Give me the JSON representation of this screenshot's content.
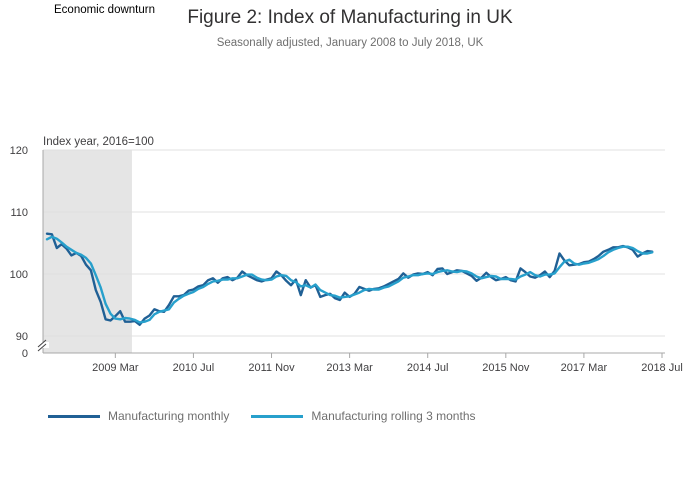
{
  "header": {
    "title": "Figure 2: Index of Manufacturing in UK",
    "subtitle": "Seasonally adjusted, January 2008 to July 2018, UK"
  },
  "annotation": {
    "downturn_label": "Economic downturn"
  },
  "colors": {
    "monthly": "#206095",
    "rolling": "#27A0CC",
    "downturn_shade": "#E5E5E5",
    "grid": "#E0E0E0",
    "axis": "#A8A8A8",
    "tick_text": "#414042"
  },
  "chart_data": {
    "type": "line",
    "ylabel": "Index year, 2016=100",
    "ylim": [
      0,
      120
    ],
    "y_ticks": [
      0,
      90,
      100,
      110,
      120
    ],
    "y_axis_broken": true,
    "grid": true,
    "legend_position": "bottom-left",
    "x_tick_labels": [
      {
        "label": "2009 Mar",
        "month_index": 14
      },
      {
        "label": "2010 Jul",
        "month_index": 30
      },
      {
        "label": "2011 Nov",
        "month_index": 46
      },
      {
        "label": "2013 Mar",
        "month_index": 62
      },
      {
        "label": "2014 Jul",
        "month_index": 78
      },
      {
        "label": "2015 Nov",
        "month_index": 94
      },
      {
        "label": "2017 Mar",
        "month_index": 110
      },
      {
        "label": "2018 Jul",
        "month_index": 126
      }
    ],
    "x_start": "2008 Jan",
    "x_end": "2018 Jul",
    "shaded_period": {
      "label": "Economic downturn",
      "start": "2008 Jan",
      "end": "2009 Jun"
    },
    "series": [
      {
        "name": "Manufacturing monthly",
        "values": [
          106.5,
          106.4,
          104.2,
          104.8,
          104.1,
          103.0,
          103.4,
          102.9,
          101.5,
          100.6,
          97.4,
          95.5,
          92.7,
          92.5,
          93.2,
          94.0,
          92.3,
          92.3,
          92.4,
          91.8,
          92.8,
          93.3,
          94.3,
          94.0,
          93.9,
          95.0,
          96.4,
          96.4,
          96.6,
          97.3,
          97.5,
          98.0,
          98.2,
          99.0,
          99.3,
          98.6,
          99.3,
          99.5,
          99.0,
          99.4,
          100.4,
          99.8,
          99.4,
          99.0,
          98.8,
          99.1,
          99.3,
          100.4,
          99.8,
          98.9,
          98.2,
          99.1,
          96.6,
          99.0,
          97.8,
          98.2,
          96.3,
          96.6,
          96.8,
          96.1,
          95.8,
          97.0,
          96.3,
          96.8,
          97.9,
          97.6,
          97.3,
          97.6,
          97.7,
          98.0,
          98.4,
          98.8,
          99.2,
          100.1,
          99.4,
          99.9,
          100.1,
          100.0,
          100.3,
          99.8,
          100.8,
          100.9,
          100.0,
          100.3,
          100.6,
          100.5,
          100.1,
          99.7,
          98.9,
          99.4,
          100.2,
          99.5,
          99.0,
          99.2,
          99.5,
          99.0,
          98.8,
          100.9,
          100.3,
          99.6,
          99.4,
          99.8,
          100.4,
          99.5,
          100.5,
          103.3,
          102.2,
          101.4,
          101.5,
          101.6,
          101.9,
          102.0,
          102.4,
          102.9,
          103.6,
          103.9,
          104.3,
          104.3,
          104.5,
          104.3,
          103.9,
          102.8,
          103.3,
          103.7,
          103.6
        ]
      },
      {
        "name": "Manufacturing rolling 3 months",
        "values": [
          105.6,
          106.0,
          105.7,
          105.1,
          104.4,
          103.9,
          103.4,
          103.1,
          102.6,
          101.7,
          99.8,
          97.8,
          95.2,
          93.6,
          92.8,
          92.7,
          92.9,
          92.8,
          92.6,
          92.2,
          92.3,
          92.6,
          93.5,
          93.9,
          94.1,
          94.3,
          95.4,
          96.0,
          96.5,
          96.8,
          97.1,
          97.6,
          97.9,
          98.4,
          98.8,
          98.9,
          99.1,
          99.1,
          99.3,
          99.3,
          99.6,
          99.9,
          99.9,
          99.4,
          99.1,
          99.0,
          99.1,
          99.6,
          99.8,
          99.7,
          99.0,
          98.7,
          98.0,
          98.2,
          97.8,
          98.3,
          97.4,
          97.0,
          96.6,
          96.5,
          96.2,
          96.3,
          96.4,
          96.7,
          97.0,
          97.4,
          97.6,
          97.5,
          97.5,
          97.8,
          98.0,
          98.4,
          98.8,
          99.4,
          99.6,
          99.8,
          99.8,
          100.0,
          100.1,
          100.0,
          100.3,
          100.5,
          100.6,
          100.4,
          100.3,
          100.5,
          100.4,
          100.1,
          99.6,
          99.3,
          99.5,
          99.7,
          99.6,
          99.2,
          99.2,
          99.2,
          99.1,
          99.6,
          99.9,
          100.3,
          99.8,
          99.6,
          99.9,
          99.9,
          100.1,
          101.1,
          102.0,
          102.3,
          101.7,
          101.5,
          101.7,
          101.8,
          102.1,
          102.4,
          102.9,
          103.5,
          103.9,
          104.2,
          104.4,
          104.4,
          104.2,
          103.7,
          103.3,
          103.3,
          103.5
        ]
      }
    ]
  }
}
